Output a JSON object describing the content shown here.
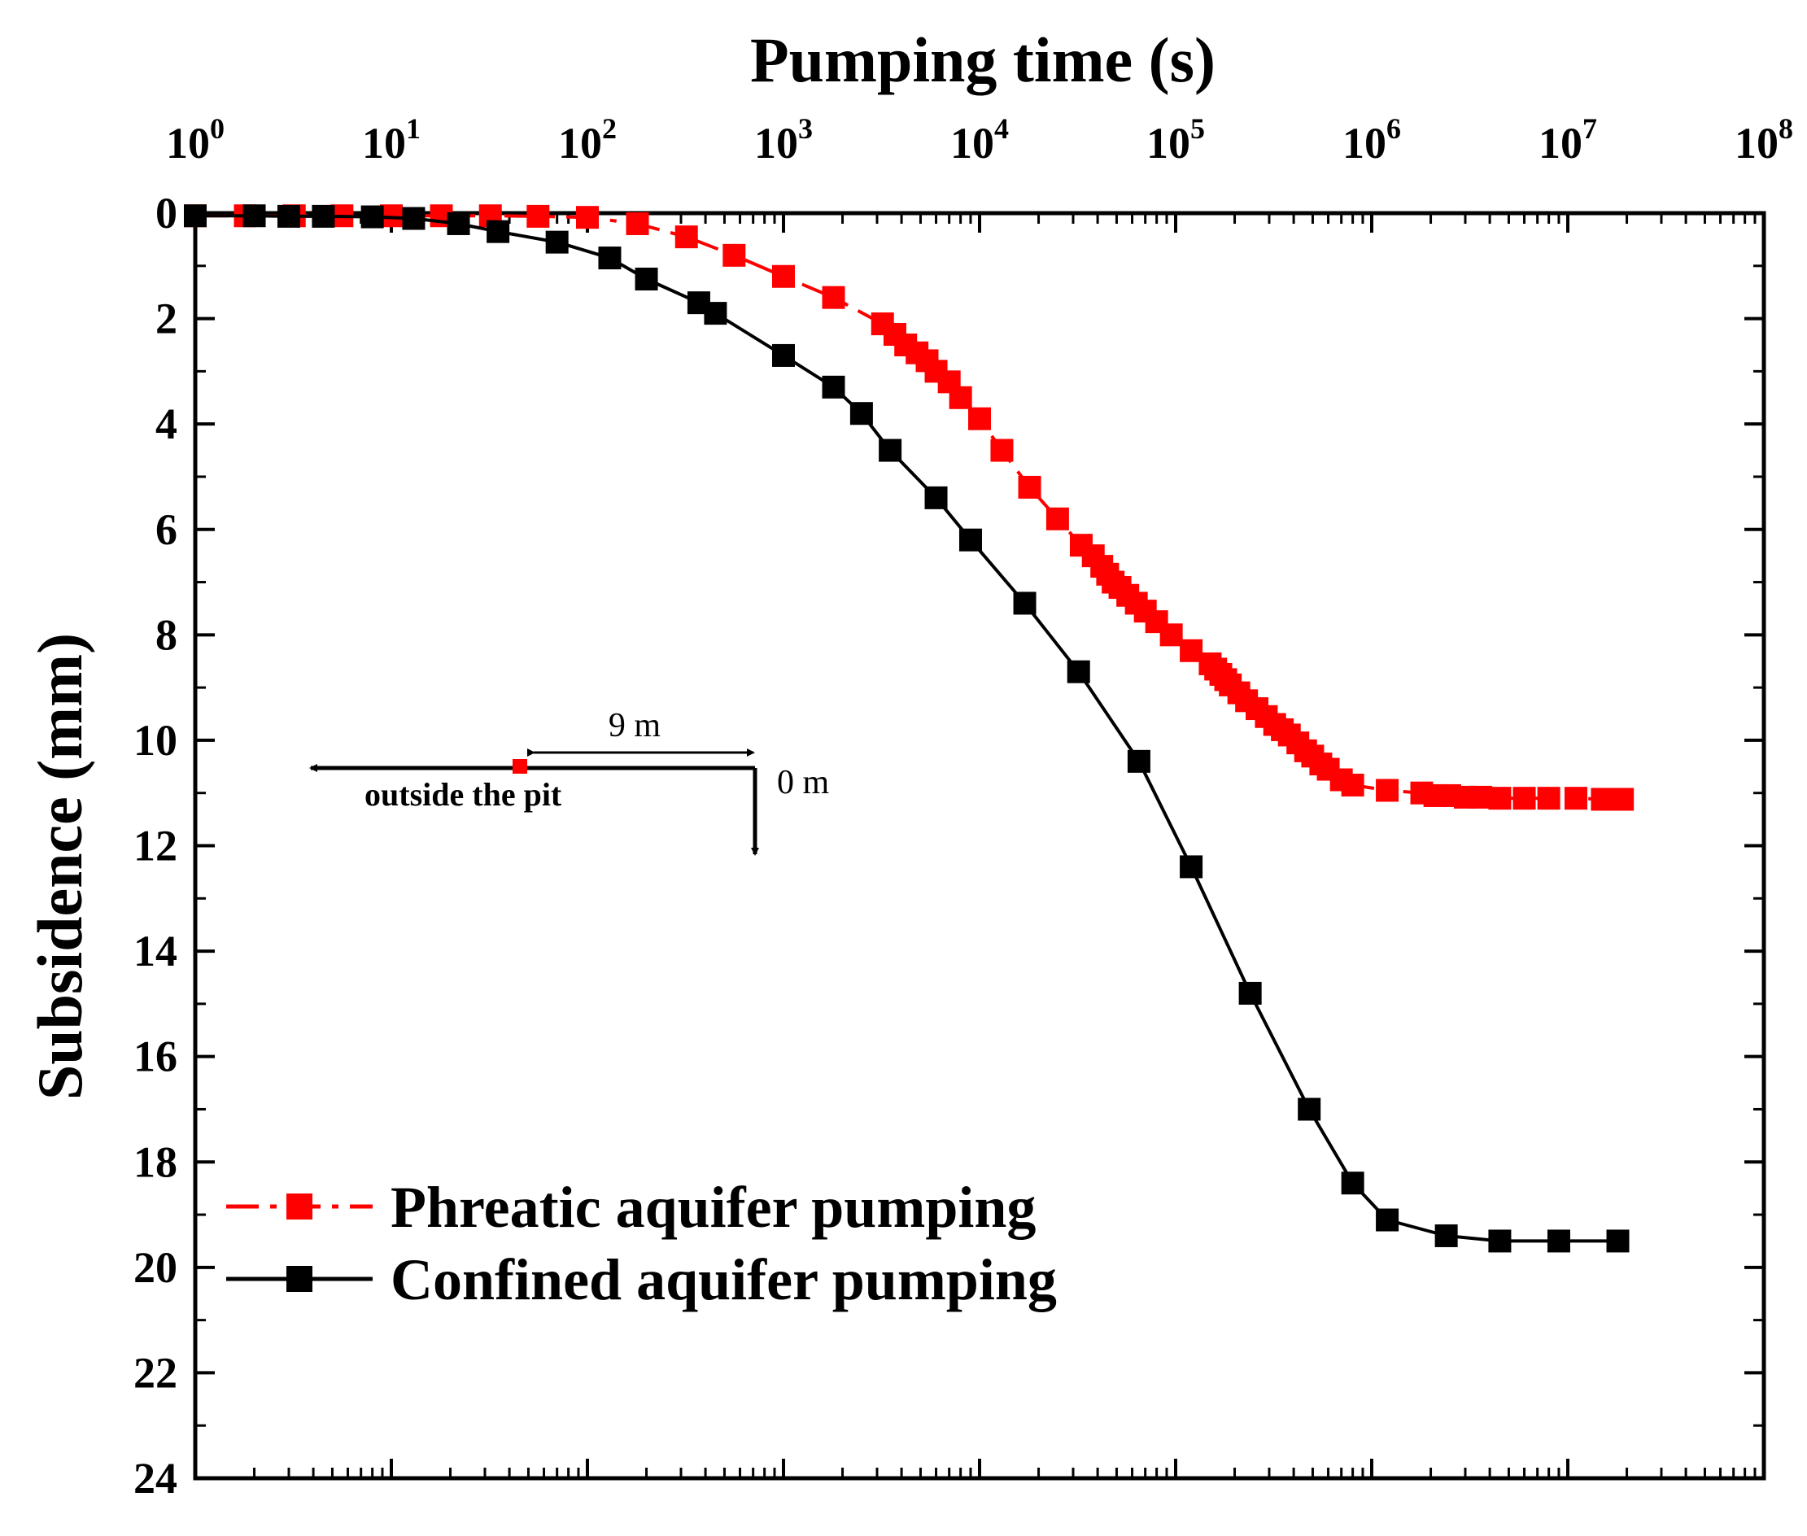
{
  "chart_data": {
    "type": "line",
    "title": "",
    "xlabel": "Pumping time (s)",
    "ylabel": "Subsidence (mm)",
    "xscale": "log",
    "xlim": [
      1,
      100000000
    ],
    "ylim": [
      0,
      24
    ],
    "y_inverted": true,
    "x_axis_position": "top",
    "xtick_labels": [
      {
        "base": "10",
        "exp": "0"
      },
      {
        "base": "10",
        "exp": "1"
      },
      {
        "base": "10",
        "exp": "2"
      },
      {
        "base": "10",
        "exp": "3"
      },
      {
        "base": "10",
        "exp": "4"
      },
      {
        "base": "10",
        "exp": "5"
      },
      {
        "base": "10",
        "exp": "6"
      },
      {
        "base": "10",
        "exp": "7"
      },
      {
        "base": "10",
        "exp": "8"
      }
    ],
    "ytick_labels": [
      "0",
      "2",
      "4",
      "6",
      "8",
      "10",
      "12",
      "14",
      "16",
      "18",
      "20",
      "22",
      "24"
    ],
    "legend_position": "bottom-left",
    "series": [
      {
        "name": "Phreatic aquifer pumping",
        "color": "#ff0000",
        "dash": "dash-dot",
        "x": [
          1,
          1.8,
          3.2,
          5.6,
          10,
          18,
          32,
          56,
          100,
          180,
          320,
          560,
          1000,
          1800,
          3200,
          3700,
          4200,
          4800,
          5400,
          6000,
          7000,
          8000,
          10000,
          13000,
          18000,
          25000,
          33000,
          38000,
          42000,
          45000,
          48000,
          52000,
          57000,
          63000,
          70000,
          80000,
          95000,
          120000,
          150000,
          160000,
          170000,
          180000,
          190000,
          210000,
          230000,
          260000,
          290000,
          320000,
          350000,
          380000,
          420000,
          460000,
          500000,
          550000,
          600000,
          700000,
          800000,
          1200000,
          1800000,
          2100000,
          2500000,
          3000000,
          3600000,
          4500000,
          6000000,
          8000000,
          11000000,
          15000000,
          19000000
        ],
        "y": [
          0.05,
          0.05,
          0.05,
          0.05,
          0.05,
          0.05,
          0.05,
          0.06,
          0.08,
          0.2,
          0.45,
          0.8,
          1.2,
          1.6,
          2.1,
          2.3,
          2.5,
          2.65,
          2.8,
          3.0,
          3.2,
          3.5,
          3.9,
          4.5,
          5.2,
          5.8,
          6.3,
          6.5,
          6.7,
          6.85,
          7.0,
          7.1,
          7.25,
          7.4,
          7.55,
          7.75,
          8.0,
          8.3,
          8.55,
          8.65,
          8.75,
          8.85,
          8.95,
          9.1,
          9.25,
          9.4,
          9.55,
          9.7,
          9.8,
          9.9,
          10.05,
          10.2,
          10.3,
          10.45,
          10.55,
          10.75,
          10.85,
          10.95,
          11.0,
          11.05,
          11.05,
          11.08,
          11.08,
          11.1,
          11.1,
          11.1,
          11.1,
          11.12,
          11.12
        ]
      },
      {
        "name": "Confined aquifer pumping",
        "color": "#000000",
        "dash": "solid",
        "x": [
          1,
          2,
          3,
          4.5,
          8,
          13,
          22,
          35,
          70,
          130,
          200,
          370,
          450,
          1000,
          1800,
          2500,
          3500,
          6000,
          9000,
          17000,
          32000,
          65000,
          120000,
          240000,
          480000,
          800000,
          1200000,
          2400000,
          4500000,
          9000000,
          18000000
        ],
        "y": [
          0.05,
          0.05,
          0.06,
          0.06,
          0.07,
          0.1,
          0.2,
          0.35,
          0.55,
          0.85,
          1.25,
          1.7,
          1.9,
          2.7,
          3.3,
          3.8,
          4.5,
          5.4,
          6.2,
          7.4,
          8.7,
          10.4,
          12.4,
          14.8,
          17.0,
          18.4,
          19.1,
          19.4,
          19.5,
          19.5,
          19.5
        ]
      }
    ],
    "inset": {
      "distance_label": "9 m",
      "zero_label": "0 m",
      "side_label": "outside the pit"
    }
  }
}
